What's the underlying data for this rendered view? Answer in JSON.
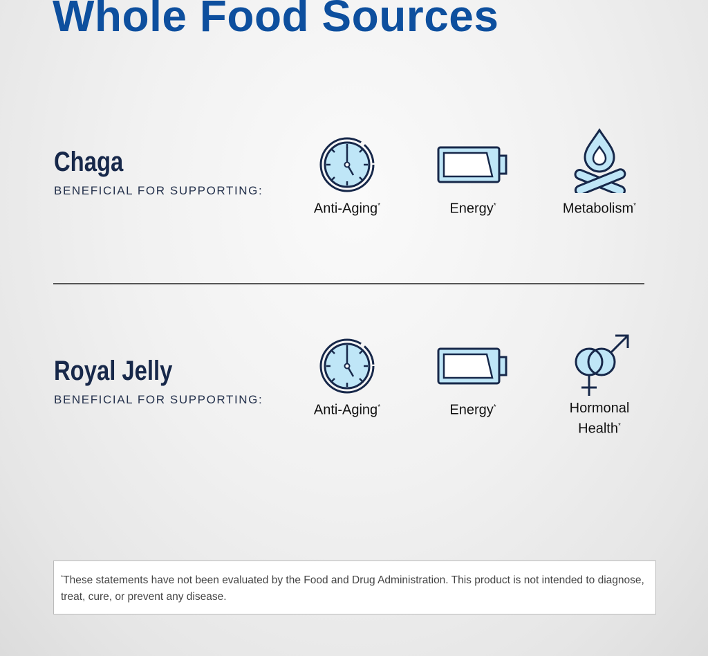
{
  "title": "Whole Food Sources",
  "colors": {
    "title": "#0d4f9e",
    "navy": "#17284a",
    "icon_fill": "#bfe6f7"
  },
  "sections": [
    {
      "name": "Chaga",
      "subtitle": "BENEFICIAL FOR SUPPORTING:",
      "benefits": [
        {
          "label": "Anti-Aging",
          "mark": "*",
          "icon": "clock-icon"
        },
        {
          "label": "Energy",
          "mark": "*",
          "icon": "battery-icon"
        },
        {
          "label": "Metabolism",
          "mark": "*",
          "icon": "campfire-icon"
        }
      ]
    },
    {
      "name": "Royal Jelly",
      "subtitle": "BENEFICIAL FOR SUPPORTING:",
      "benefits": [
        {
          "label": "Anti-Aging",
          "mark": "*",
          "icon": "clock-icon"
        },
        {
          "label": "Energy",
          "mark": "*",
          "icon": "battery-icon"
        },
        {
          "label": "Hormonal",
          "label2": "Health",
          "mark": "*",
          "icon": "gender-symbols-icon"
        }
      ]
    }
  ],
  "disclaimer": {
    "mark": "*",
    "text": "These statements have not been evaluated by the Food and Drug Administration. This product is not intended to diagnose, treat, cure, or prevent any disease."
  }
}
